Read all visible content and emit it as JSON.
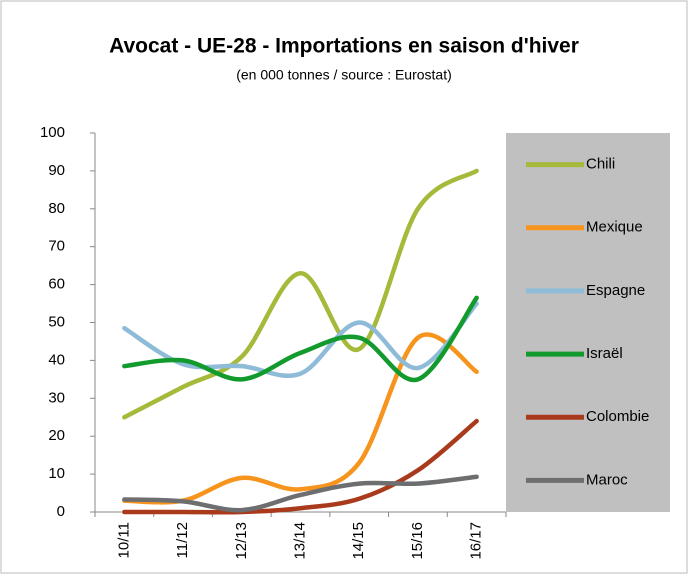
{
  "chart_data": {
    "type": "line",
    "title": "Avocat - UE-28 - Importations en saison d'hiver",
    "subtitle": "(en 000 tonnes / source : Eurostat)",
    "categories": [
      "10/11",
      "11/12",
      "12/13",
      "13/14",
      "14/15",
      "15/16",
      "16/17"
    ],
    "series": [
      {
        "name": "Chili",
        "color": "#a6b93a",
        "values": [
          25,
          33,
          41,
          63,
          43,
          80,
          90
        ]
      },
      {
        "name": "Mexique",
        "color": "#f7941d",
        "values": [
          3,
          3,
          9,
          6,
          13,
          46,
          37
        ]
      },
      {
        "name": "Espagne",
        "color": "#8ebcd8",
        "values": [
          48.5,
          39,
          38.5,
          36.5,
          50,
          38,
          55
        ]
      },
      {
        "name": "Israël",
        "color": "#139a2d",
        "values": [
          38.5,
          40,
          35,
          42,
          46,
          35,
          56.5
        ]
      },
      {
        "name": "Colombie",
        "color": "#a93a1c",
        "values": [
          0,
          0,
          0,
          1,
          3.5,
          11,
          24
        ]
      },
      {
        "name": "Maroc",
        "color": "#6d6e70",
        "values": [
          3.3,
          2.8,
          0.5,
          4.5,
          7.5,
          7.5,
          9.3
        ]
      }
    ],
    "ylim": [
      0,
      100
    ],
    "yticks": [
      0,
      10,
      20,
      30,
      40,
      50,
      60,
      70,
      80,
      90,
      100
    ],
    "smooth": true,
    "legend_position": "right",
    "grid": false
  }
}
